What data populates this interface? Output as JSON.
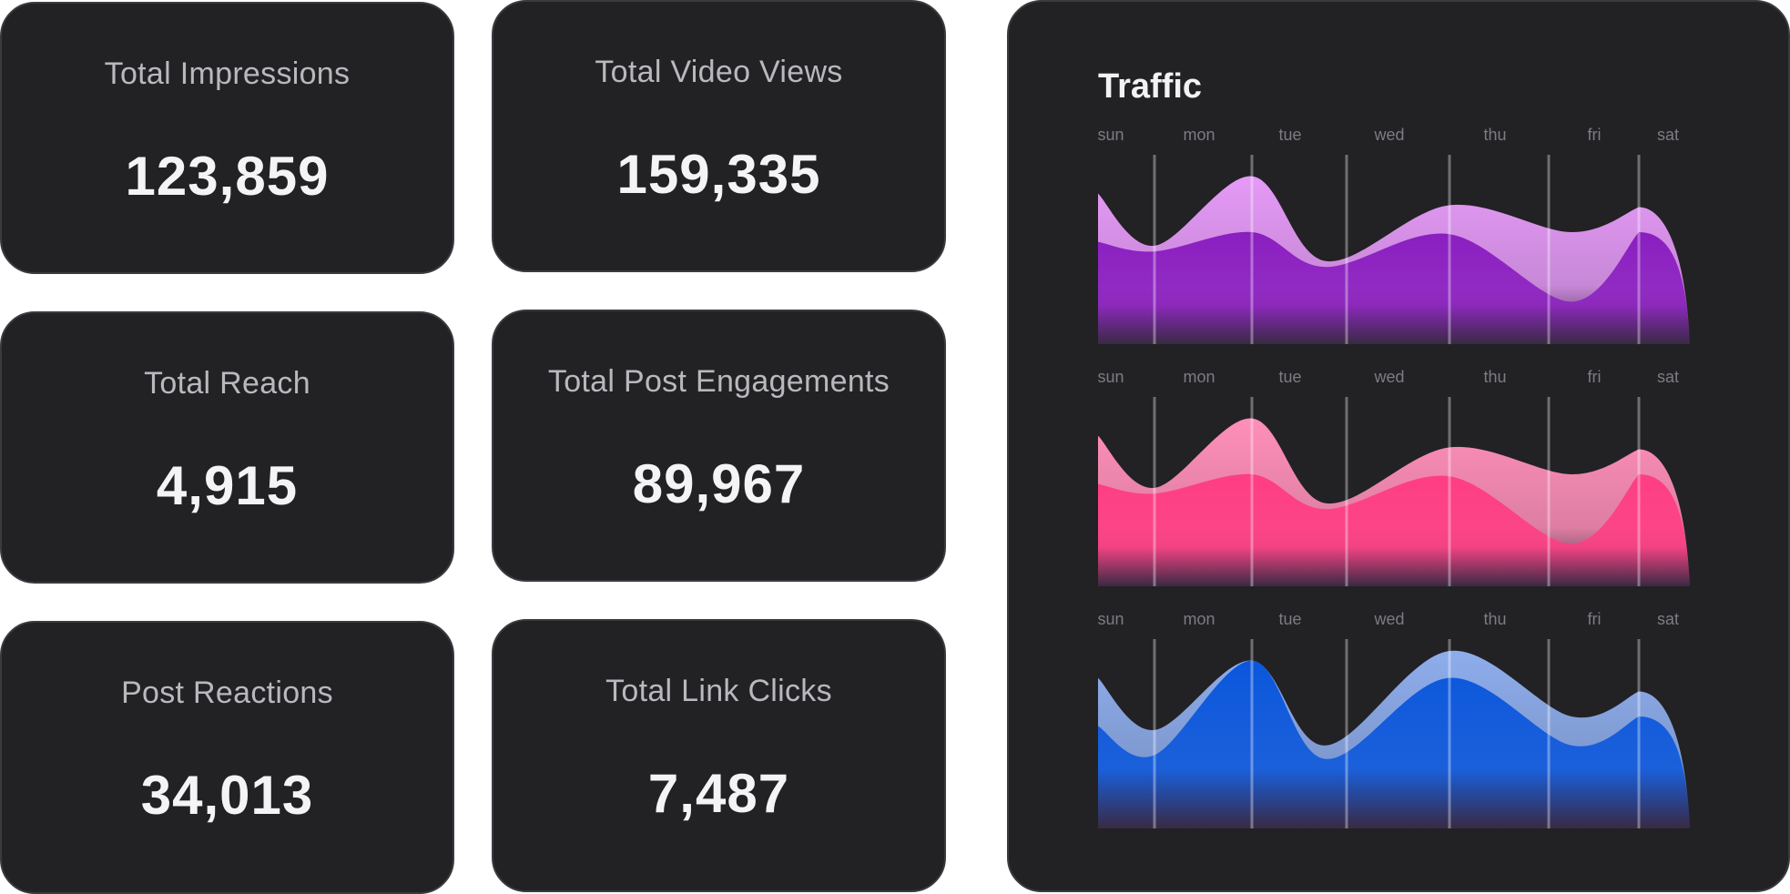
{
  "metrics": [
    {
      "label": "Total Impressions",
      "value": "123,859"
    },
    {
      "label": "Total Video Views",
      "value": "159,335"
    },
    {
      "label": "Total Reach",
      "value": "4,915"
    },
    {
      "label": "Total Post Engagements",
      "value": "89,967"
    },
    {
      "label": "Post Reactions",
      "value": "34,013"
    },
    {
      "label": "Total Link Clicks",
      "value": "7,487"
    }
  ],
  "traffic": {
    "title": "Traffic",
    "days": [
      "sun",
      "mon",
      "tue",
      "wed",
      "thu",
      "fri",
      "sat"
    ]
  },
  "colors": {
    "card_bg": "#222124",
    "purple_light": "#e59af7",
    "purple_dark": "#8a1ec0",
    "pink_light": "#ff8fb8",
    "pink_dark": "#ff3d83",
    "blue_light": "#8eadec",
    "blue_dark": "#0a56dc"
  },
  "chart_data": {
    "type": "area",
    "title": "Traffic",
    "x": [
      "sun",
      "mon",
      "tue",
      "wed",
      "thu",
      "fri",
      "sat"
    ],
    "charts": [
      {
        "series": [
          {
            "values": [
              0.78,
              0.51,
              0.87,
              0.43,
              0.72,
              0.58,
              0.71
            ]
          },
          {
            "values": [
              0.53,
              0.48,
              0.58,
              0.4,
              0.57,
              0.22,
              0.58
            ]
          }
        ]
      },
      {
        "series": [
          {
            "values": [
              0.78,
              0.51,
              0.87,
              0.43,
              0.72,
              0.58,
              0.71
            ]
          },
          {
            "values": [
              0.53,
              0.48,
              0.58,
              0.4,
              0.57,
              0.22,
              0.58
            ]
          }
        ]
      },
      {
        "series": [
          {
            "values": [
              0.78,
              0.51,
              0.87,
              0.43,
              0.92,
              0.58,
              0.71
            ]
          },
          {
            "values": [
              0.53,
              0.38,
              0.87,
              0.36,
              0.78,
              0.43,
              0.58
            ]
          }
        ]
      }
    ]
  }
}
